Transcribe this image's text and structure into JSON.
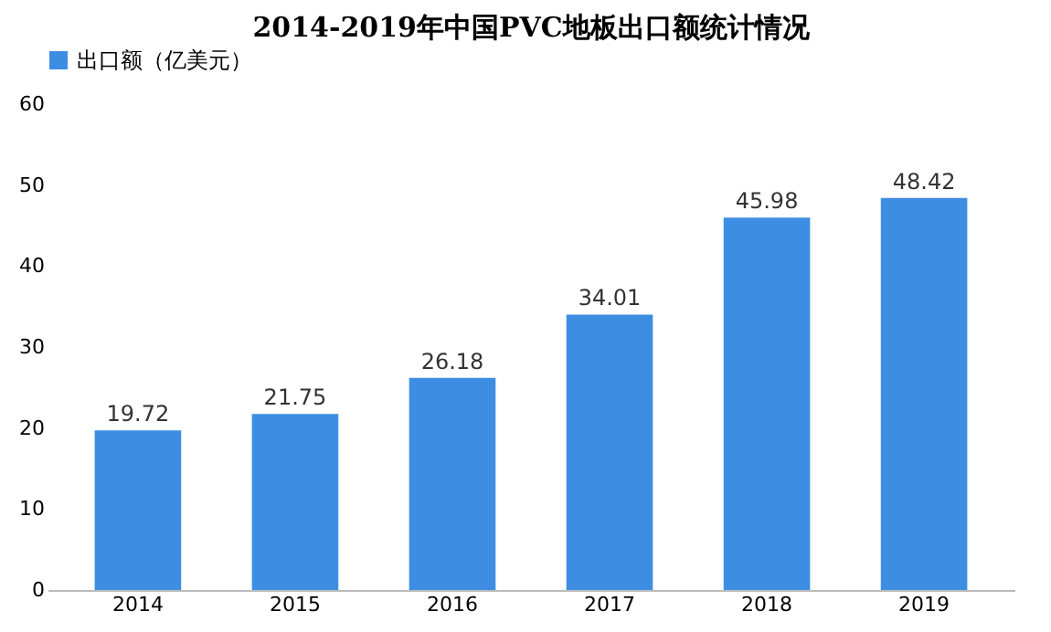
{
  "chart_data": {
    "type": "bar",
    "title": "2014-2019年中国PVC地板出口额统计情况",
    "categories": [
      "2014",
      "2015",
      "2016",
      "2017",
      "2018",
      "2019"
    ],
    "series": [
      {
        "name": "出口额（亿美元）",
        "color": "#3d8ee3",
        "values": [
          19.72,
          21.75,
          26.18,
          34.01,
          45.98,
          48.42
        ]
      }
    ],
    "ylim": [
      0,
      60
    ],
    "yticks": [
      0,
      10,
      20,
      30,
      40,
      50,
      60
    ],
    "grid": false,
    "legend": "top",
    "data_labels": true
  }
}
